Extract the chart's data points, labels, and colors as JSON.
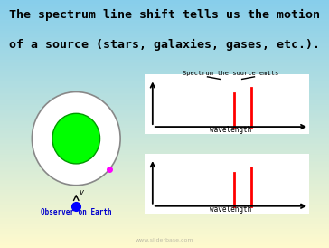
{
  "title_line1": "The spectrum line shift tells us the motion",
  "title_line2": "of a source (stars, galaxies, gases, etc.).",
  "title_fontsize": 9.5,
  "title_color": "#000000",
  "panel_facecolor": "#FFFFFF",
  "star_outer_color": "#FFFFFF",
  "star_outer_edge": "#808080",
  "star_inner_color": "#00FF00",
  "star_inner_edge": "#009900",
  "orbit_dot_color": "#FF00FF",
  "earth_color": "#0000FF",
  "observer_label_color": "#0000CC",
  "red_line_color": "#FF0000",
  "watermark": "www.sliderbase.com",
  "wavelength_label": "wavelength",
  "spectrum_label": "Spectrum the source emits"
}
